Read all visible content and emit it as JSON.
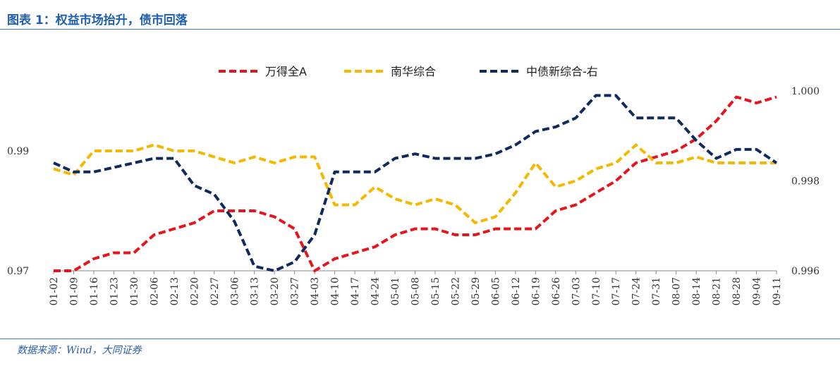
{
  "header": {
    "title": "图表 1：权益市场抬升，债市回落"
  },
  "footer": {
    "source": "数据来源：Wind，大同证券"
  },
  "colors": {
    "accent": "#1f5fb0",
    "series_wande": "#e8141c",
    "series_nanhua": "#f5b800",
    "series_zhongzhai": "#0f2a5c"
  },
  "chart_data": {
    "type": "line",
    "title": "",
    "xlabel": "",
    "ylabel": "",
    "grid": false,
    "legend_position": "top-center",
    "line_style": "dashed",
    "x_ticks": [
      "01-02",
      "01-09",
      "01-16",
      "01-23",
      "01-30",
      "02-06",
      "02-13",
      "02-20",
      "02-27",
      "03-06",
      "03-13",
      "03-20",
      "03-27",
      "04-03",
      "04-10",
      "04-17",
      "04-24",
      "05-01",
      "05-08",
      "05-15",
      "05-22",
      "05-29",
      "06-05",
      "06-12",
      "06-19",
      "06-26",
      "07-03",
      "07-10",
      "07-17",
      "07-24",
      "07-31",
      "08-07",
      "08-14",
      "08-21",
      "08-28",
      "09-04",
      "09-11"
    ],
    "y_left": {
      "min": 0.97,
      "max": 1.0,
      "tick_labels": [
        "0.97",
        "0.99"
      ],
      "tick_values": [
        0.97,
        0.99
      ]
    },
    "y_right": {
      "min": 0.996,
      "max": 1.0,
      "tick_labels": [
        "0.996",
        "0.998",
        "1.000"
      ],
      "tick_values": [
        0.996,
        0.998,
        1.0
      ]
    },
    "series": [
      {
        "name": "万得全A",
        "axis": "left",
        "color": "#e8141c",
        "values": [
          0.97,
          0.97,
          0.972,
          0.973,
          0.973,
          0.976,
          0.977,
          0.978,
          0.98,
          0.98,
          0.98,
          0.979,
          0.977,
          0.97,
          0.972,
          0.973,
          0.974,
          0.976,
          0.977,
          0.977,
          0.976,
          0.976,
          0.977,
          0.977,
          0.977,
          0.98,
          0.981,
          0.983,
          0.985,
          0.988,
          0.989,
          0.99,
          0.992,
          0.995,
          0.999,
          0.998,
          0.999
        ]
      },
      {
        "name": "南华综合",
        "axis": "left",
        "color": "#f5b800",
        "values": [
          0.987,
          0.986,
          0.99,
          0.99,
          0.99,
          0.991,
          0.99,
          0.99,
          0.989,
          0.988,
          0.989,
          0.988,
          0.989,
          0.989,
          0.981,
          0.981,
          0.984,
          0.982,
          0.981,
          0.982,
          0.981,
          0.978,
          0.979,
          0.983,
          0.988,
          0.984,
          0.985,
          0.987,
          0.988,
          0.991,
          0.988,
          0.988,
          0.989,
          0.988,
          0.988,
          0.988,
          0.988
        ]
      },
      {
        "name": "中债新综合-右",
        "axis": "right",
        "color": "#0f2a5c",
        "values": [
          0.9984,
          0.9982,
          0.9982,
          0.9983,
          0.9984,
          0.9985,
          0.9985,
          0.9979,
          0.9977,
          0.9971,
          0.9961,
          0.996,
          0.9962,
          0.9968,
          0.9982,
          0.9982,
          0.9982,
          0.9985,
          0.9986,
          0.9985,
          0.9985,
          0.9985,
          0.9986,
          0.9988,
          0.9991,
          0.9992,
          0.9994,
          0.9999,
          0.9999,
          0.9994,
          0.9994,
          0.9994,
          0.9989,
          0.9985,
          0.9987,
          0.9987,
          0.9984
        ]
      }
    ]
  }
}
